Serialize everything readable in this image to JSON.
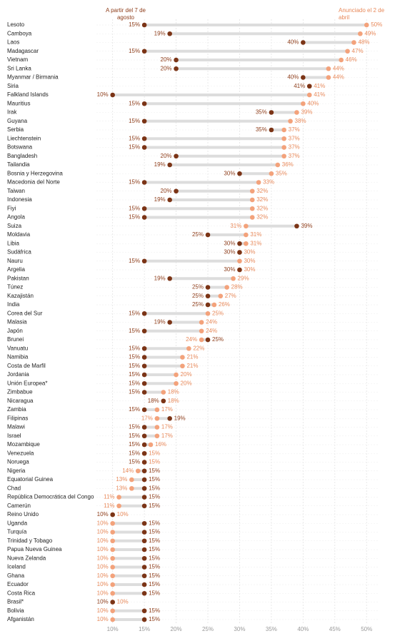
{
  "chart_data": {
    "type": "dumbbell",
    "categories": [
      "Lesoto",
      "Camboya",
      "Laos",
      "Madagascar",
      "Vietnam",
      "Sri Lanka",
      "Myanmar / Birmania",
      "Siria",
      "Falkland Islands",
      "Mauritius",
      "Irak",
      "Guyana",
      "Serbia",
      "Liechtenstein",
      "Botswana",
      "Bangladesh",
      "Tailandia",
      "Bosnia y Herzegovina",
      "Macedonia del Norte",
      "Taiwan",
      "Indonesia",
      "Fiyi",
      "Angola",
      "Suiza",
      "Moldavia",
      "Libia",
      "Sudáfrica",
      "Nauru",
      "Argelia",
      "Pakistan",
      "Túnez",
      "Kazajistán",
      "India",
      "Corea del Sur",
      "Malasia",
      "Japón",
      "Brunei",
      "Vanuatu",
      "Namibia",
      "Costa de Marfil",
      "Jordania",
      "Unión Europea*",
      "Zimbabue",
      "Nicaragua",
      "Zambia",
      "Filipinas",
      "Malawi",
      "Israel",
      "Mozambique",
      "Venezuela",
      "Noruega",
      "Nigeria",
      "Equatorial Guinea",
      "Chad",
      "República Democrática del Congo",
      "Camerún",
      "Reino Unido",
      "Uganda",
      "Turquía",
      "Trinidad y Tobago",
      "Papua Nueva Guinea",
      "Nueva Zelanda",
      "Iceland",
      "Ghana",
      "Ecuador",
      "Costa Rica",
      "Brasil*",
      "Bolivia",
      "Afganistán"
    ],
    "series": [
      {
        "name": "A partir del 7 de agosto",
        "color": "#7b3416",
        "label_color": "#8e3d1a",
        "values": [
          15,
          19,
          40,
          15,
          20,
          20,
          40,
          41,
          10,
          15,
          35,
          15,
          35,
          15,
          15,
          20,
          19,
          30,
          15,
          20,
          19,
          15,
          15,
          39,
          25,
          30,
          30,
          15,
          30,
          19,
          25,
          25,
          25,
          15,
          19,
          15,
          25,
          15,
          15,
          15,
          15,
          15,
          15,
          18,
          15,
          19,
          15,
          15,
          15,
          15,
          15,
          15,
          15,
          15,
          15,
          15,
          10,
          15,
          15,
          15,
          15,
          15,
          15,
          15,
          15,
          15,
          10,
          15,
          15
        ],
        "value_labels": [
          "15%",
          "19%",
          "40%",
          "15%",
          "20%",
          "20%",
          "40%",
          "41%",
          "10%",
          "15%",
          "35%",
          "15%",
          "35%",
          "15%",
          "15%",
          "20%",
          "19%",
          "30%",
          "15%",
          "20%",
          "19%",
          "15%",
          "15%",
          "39%",
          "25%",
          "30%",
          "30%",
          "15%",
          "30%",
          "19%",
          "25%",
          "25%",
          "25%",
          "15%",
          "19%",
          "15%",
          "25%",
          "15%",
          "15%",
          "15%",
          "15%",
          "15%",
          "15%",
          "18%",
          "15%",
          "19%",
          "15%",
          "15%",
          "15%",
          "15%",
          "15%",
          "15%",
          "15%",
          "15%",
          "15%",
          "15%",
          "10%",
          "15%",
          "15%",
          "15%",
          "15%",
          "15%",
          "15%",
          "15%",
          "15%",
          "15%",
          "10%",
          "15%",
          "15%"
        ]
      },
      {
        "name": "Anunciado el 2 de abril",
        "color": "#f3a27b",
        "label_color": "#e8895a",
        "values": [
          50,
          49,
          48,
          47,
          46,
          44,
          44,
          41,
          41,
          40,
          39,
          38,
          37,
          37,
          37,
          37,
          36,
          35,
          33,
          32,
          32,
          32,
          32,
          31,
          31,
          31,
          30,
          30,
          30,
          29,
          28,
          27,
          26,
          25,
          24,
          24,
          24,
          22,
          21,
          21,
          20,
          20,
          18,
          18,
          17,
          17,
          17,
          17,
          16,
          15,
          15,
          14,
          13,
          13,
          11,
          11,
          10,
          10,
          10,
          10,
          10,
          10,
          10,
          10,
          10,
          10,
          10,
          10,
          10
        ],
        "value_labels": [
          "50%",
          "49%",
          "48%",
          "47%",
          "46%",
          "44%",
          "44%",
          "41%",
          "41%",
          "40%",
          "39%",
          "38%",
          "37%",
          "37%",
          "37%",
          "37%",
          "36%",
          "35%",
          "33%",
          "32%",
          "32%",
          "32%",
          "32%",
          "31%",
          "31%",
          "31%",
          "30%",
          "30%",
          "30%",
          "29%",
          "28%",
          "27%",
          "26%",
          "25%",
          "24%",
          "24%",
          "24%",
          "22%",
          "21%",
          "21%",
          "20%",
          "20%",
          "18%",
          "18%",
          "17%",
          "17%",
          "17%",
          "17%",
          "16%",
          "15%",
          "15%",
          "14%",
          "13%",
          "13%",
          "11%",
          "11%",
          "10%",
          "10%",
          "10%",
          "10%",
          "10%",
          "10%",
          "10%",
          "10%",
          "10%",
          "10%",
          "10%",
          "10%",
          "10%"
        ]
      }
    ],
    "xlim": [
      7,
      52
    ],
    "xticks": [
      {
        "value": 10,
        "label": "10%"
      },
      {
        "value": 15,
        "label": "15%"
      },
      {
        "value": 20,
        "label": "20%"
      },
      {
        "value": 25,
        "label": "25%"
      },
      {
        "value": 30,
        "label": "30%"
      },
      {
        "value": 35,
        "label": "35%"
      },
      {
        "value": 40,
        "label": "40%"
      },
      {
        "value": 45,
        "label": "45%"
      },
      {
        "value": 50,
        "label": "50%"
      }
    ],
    "grid": true
  }
}
